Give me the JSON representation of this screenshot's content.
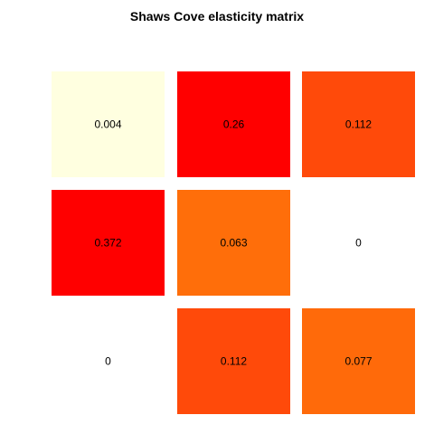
{
  "chart_data": {
    "type": "heatmap",
    "title": "Shaws Cove elasticity matrix",
    "xlabel": "",
    "ylabel": "",
    "rows": 3,
    "cols": 3,
    "matrix": [
      [
        0.004,
        0.26,
        0.112
      ],
      [
        0.372,
        0.063,
        0
      ],
      [
        0,
        0.112,
        0.077
      ]
    ],
    "labels": [
      [
        "0.004",
        "0.26",
        "0.112"
      ],
      [
        "0.372",
        "0.063",
        "0"
      ],
      [
        "0",
        "0.112",
        "0.077"
      ]
    ],
    "cell_colors": [
      [
        "#ffffe0",
        "#ff0000",
        "#ff4a0a"
      ],
      [
        "#ff0000",
        "#ff6e0a",
        "#ffffff"
      ],
      [
        "#ffffff",
        "#ff4a0a",
        "#ff6a0a"
      ]
    ],
    "zero_color": "#ffffff",
    "low_color": "#ffffe0",
    "high_color": "#ff0000",
    "grid": false,
    "legend": "none"
  }
}
